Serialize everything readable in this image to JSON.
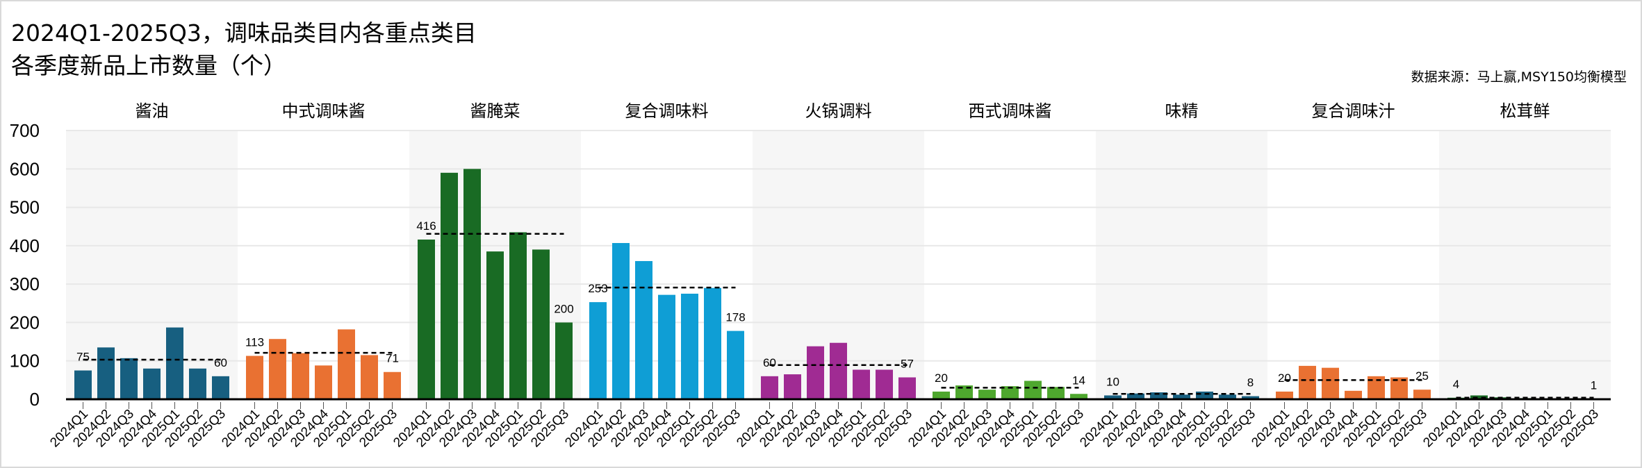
{
  "title_line1": "2024Q1-2025Q3，调味品类目内各重点类目",
  "title_line2": "各季度新品上市数量（个）",
  "source": "数据来源：马上赢,MSY150均衡模型",
  "chart_data": {
    "type": "bar",
    "title": "2024Q1-2025Q3，调味品类目内各重点类目各季度新品上市数量（个）",
    "xlabel": "",
    "ylabel": "",
    "ylim": [
      0,
      700
    ],
    "yticks": [
      0,
      100,
      200,
      300,
      400,
      500,
      600,
      700
    ],
    "grid": true,
    "categories": [
      "2024Q1",
      "2024Q2",
      "2024Q3",
      "2024Q4",
      "2025Q1",
      "2025Q2",
      "2025Q3"
    ],
    "panels": [
      {
        "name": "酱油",
        "color": "#175f80",
        "values": [
          75,
          135,
          107,
          80,
          187,
          80,
          60
        ],
        "average": 103
      },
      {
        "name": "中式调味酱",
        "color": "#e97132",
        "values": [
          113,
          157,
          120,
          88,
          182,
          115,
          71
        ],
        "average": 121
      },
      {
        "name": "酱腌菜",
        "color": "#196b24",
        "values": [
          416,
          590,
          600,
          385,
          435,
          390,
          200
        ],
        "average": 431
      },
      {
        "name": "复合调味料",
        "color": "#0f9ed5",
        "values": [
          253,
          407,
          360,
          272,
          275,
          290,
          178
        ],
        "average": 291
      },
      {
        "name": "火锅调料",
        "color": "#a02b93",
        "values": [
          60,
          65,
          138,
          147,
          77,
          77,
          57
        ],
        "average": 89
      },
      {
        "name": "西式调味酱",
        "color": "#4ea72e",
        "values": [
          20,
          36,
          25,
          34,
          48,
          32,
          14
        ],
        "average": 30
      },
      {
        "name": "味精",
        "color": "#175f80",
        "values": [
          10,
          15,
          18,
          12,
          20,
          12,
          8
        ],
        "average": 14
      },
      {
        "name": "复合调味汁",
        "color": "#e97132",
        "values": [
          20,
          87,
          82,
          22,
          60,
          57,
          25
        ],
        "average": 50
      },
      {
        "name": "松茸鲜",
        "color": "#196b24",
        "values": [
          4,
          10,
          5,
          3,
          2,
          2,
          1
        ],
        "average": 4
      }
    ]
  }
}
